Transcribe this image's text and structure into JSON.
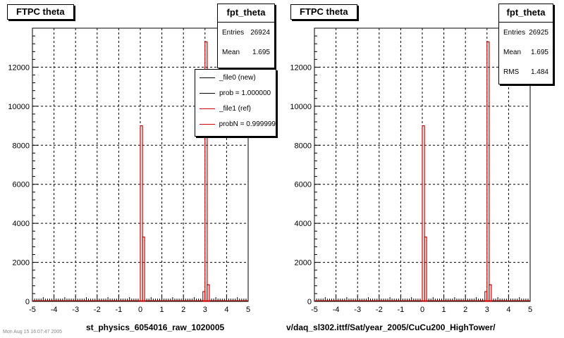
{
  "footnote": "Mon Aug 15 16:07:47 2005",
  "panels": [
    {
      "title": "FTPC theta",
      "stats": {
        "name": "fpt_theta",
        "rows": [
          {
            "label": "Entries",
            "value": "26924"
          },
          {
            "label": "Mean",
            "value": "1.695"
          }
        ]
      },
      "legend": [
        {
          "label": "_file0 (new)",
          "color": "#000000"
        },
        {
          "label": "prob = 1.000000",
          "color": "#000000"
        },
        {
          "label": "_file1 (ref)",
          "color": "#cc0000"
        },
        {
          "label": "probN = 0.999999",
          "color": "#cc0000"
        }
      ],
      "xlabel": "st_physics_6054016_raw_1020005"
    },
    {
      "title": "FTPC theta",
      "stats": {
        "name": "fpt_theta",
        "rows": [
          {
            "label": "Entries",
            "value": "26925"
          },
          {
            "label": "Mean",
            "value": "1.695"
          },
          {
            "label": "RMS",
            "value": "1.484"
          }
        ]
      },
      "legend": [],
      "xlabel": "v/daq_sl302.ittf/Sat/year_2005/CuCu200_HighTower/"
    }
  ],
  "chart_data": [
    {
      "type": "bar",
      "title": "FTPC theta",
      "xlabel": "st_physics_6054016_raw_1020005",
      "ylabel": "",
      "xlim": [
        -5,
        5
      ],
      "ylim": [
        0,
        14000
      ],
      "xticks": [
        -5,
        -4,
        -3,
        -2,
        -1,
        0,
        1,
        2,
        3,
        4,
        5
      ],
      "yticks": [
        0,
        2000,
        4000,
        6000,
        8000,
        10000,
        12000
      ],
      "grid": true,
      "legend_position": "top-right",
      "bin_width": 0.1,
      "series": [
        {
          "name": "_file1 (ref)",
          "color": "#cc0000",
          "bins": [
            {
              "x": 0.0,
              "y": 9000
            },
            {
              "x": 0.1,
              "y": 3300
            },
            {
              "x": 2.9,
              "y": 500
            },
            {
              "x": 3.0,
              "y": 13300
            },
            {
              "x": 3.1,
              "y": 850
            }
          ]
        }
      ]
    },
    {
      "type": "bar",
      "title": "FTPC theta",
      "xlabel": "v/daq_sl302.ittf/Sat/year_2005/CuCu200_HighTower/",
      "ylabel": "",
      "xlim": [
        -5,
        5
      ],
      "ylim": [
        0,
        14000
      ],
      "xticks": [
        -5,
        -4,
        -3,
        -2,
        -1,
        0,
        1,
        2,
        3,
        4,
        5
      ],
      "yticks": [
        0,
        2000,
        4000,
        6000,
        8000,
        10000,
        12000
      ],
      "grid": true,
      "bin_width": 0.1,
      "series": [
        {
          "name": "",
          "color": "#cc0000",
          "bins": [
            {
              "x": 0.0,
              "y": 9000
            },
            {
              "x": 0.1,
              "y": 3300
            },
            {
              "x": 2.9,
              "y": 500
            },
            {
              "x": 3.0,
              "y": 13300
            },
            {
              "x": 3.1,
              "y": 850
            }
          ]
        }
      ]
    }
  ]
}
